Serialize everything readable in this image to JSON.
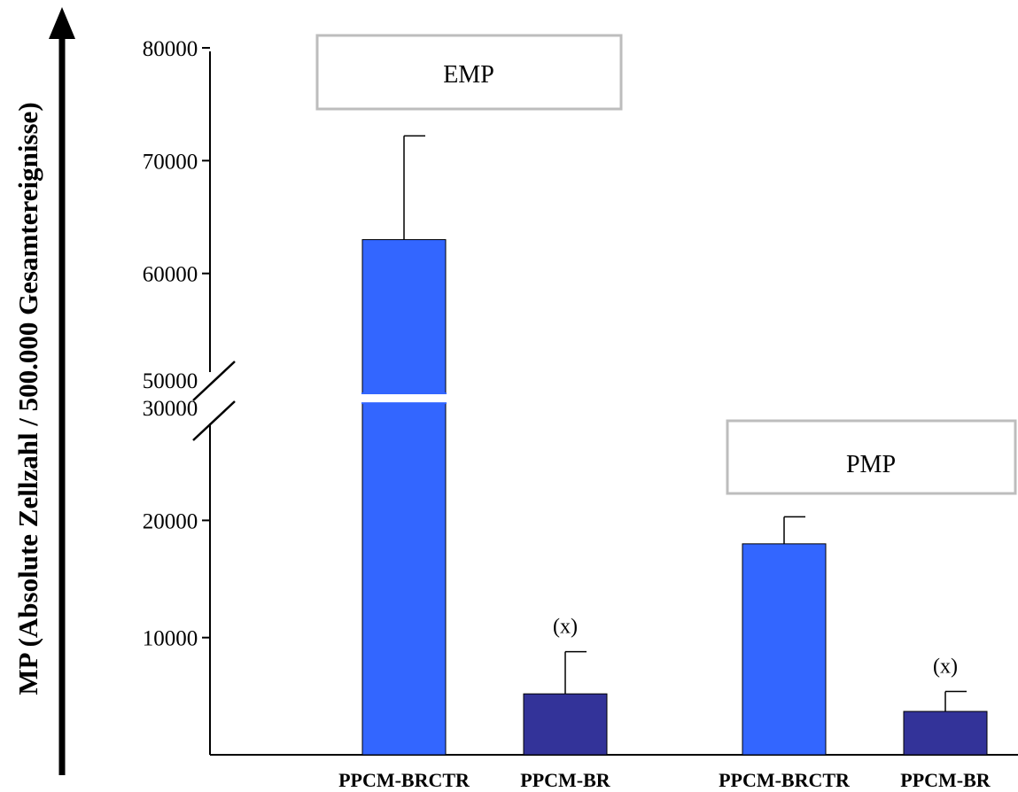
{
  "chart_data": {
    "type": "bar",
    "ylabel": "MP (Absolute Zellzahl / 500.000 Gesamtereignisse)",
    "yticks_lower": [
      10000,
      20000,
      30000
    ],
    "yticks_upper": [
      50000,
      60000,
      70000,
      80000
    ],
    "axis_break": [
      30000,
      50000
    ],
    "groups": [
      {
        "label": "EMP",
        "bars": [
          {
            "category": "PPCM-BRCTR",
            "value": 63000,
            "error": 9200,
            "color": "#3366ff",
            "annotation": ""
          },
          {
            "category": "PPCM-BR",
            "value": 5200,
            "error": 3600,
            "color": "#333399",
            "annotation": "(x)"
          }
        ]
      },
      {
        "label": "PMP",
        "bars": [
          {
            "category": "PPCM-BRCTR",
            "value": 18000,
            "error": 2300,
            "color": "#3366ff",
            "annotation": ""
          },
          {
            "category": "PPCM-BR",
            "value": 3700,
            "error": 1700,
            "color": "#333399",
            "annotation": "(x)"
          }
        ]
      }
    ]
  }
}
